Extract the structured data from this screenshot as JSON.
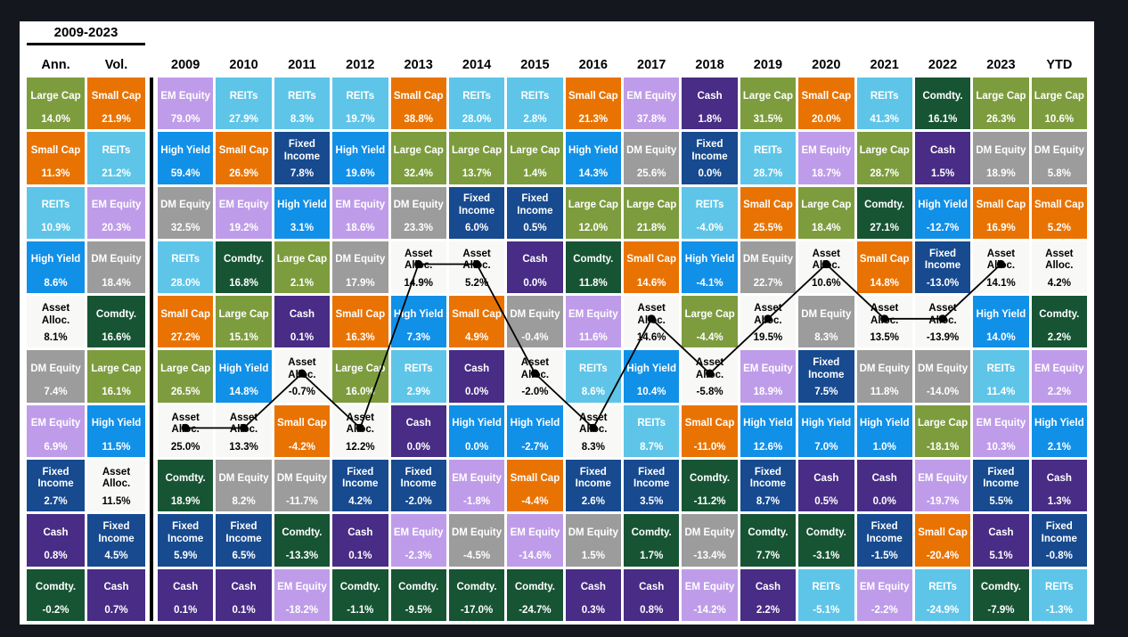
{
  "chart_data": {
    "type": "table",
    "title": "2009-2023",
    "description": "Asset class annual returns quilt chart ranking asset classes by return for each year, with annualized return and volatility summary columns and a traced line following Asset Alloc.",
    "traced_asset": "Asset Alloc.",
    "trace": {
      "color": "#000000",
      "from_column": "2009",
      "to_column": "2023"
    },
    "asset_styles": {
      "Large Cap": {
        "bg": "#7D9C3E",
        "fg": "#FFFFFF"
      },
      "Small Cap": {
        "bg": "#E97302",
        "fg": "#FFFFFF"
      },
      "REITs": {
        "bg": "#5EC5E8",
        "fg": "#FFFFFF"
      },
      "High Yield": {
        "bg": "#1190E8",
        "fg": "#FFFFFF"
      },
      "Asset Alloc.": {
        "bg": "#F8F8F6",
        "fg": "#000000"
      },
      "DM Equity": {
        "bg": "#9C9C9C",
        "fg": "#FFFFFF"
      },
      "EM Equity": {
        "bg": "#BF9CE9",
        "fg": "#FFFFFF"
      },
      "Fixed Income": {
        "bg": "#174A8F",
        "fg": "#FFFFFF"
      },
      "Cash": {
        "bg": "#482C85",
        "fg": "#FFFFFF"
      },
      "Comdty.": {
        "bg": "#175434",
        "fg": "#FFFFFF"
      }
    },
    "columns": [
      {
        "label": "Ann.",
        "group": "summary",
        "cells": [
          [
            "Large Cap",
            "14.0%"
          ],
          [
            "Small Cap",
            "11.3%"
          ],
          [
            "REITs",
            "10.9%"
          ],
          [
            "High Yield",
            "8.6%"
          ],
          [
            "Asset Alloc.",
            "8.1%"
          ],
          [
            "DM Equity",
            "7.4%"
          ],
          [
            "EM Equity",
            "6.9%"
          ],
          [
            "Fixed Income",
            "2.7%"
          ],
          [
            "Cash",
            "0.8%"
          ],
          [
            "Comdty.",
            "-0.2%"
          ]
        ]
      },
      {
        "label": "Vol.",
        "group": "summary",
        "cells": [
          [
            "Small Cap",
            "21.9%"
          ],
          [
            "REITs",
            "21.2%"
          ],
          [
            "EM Equity",
            "20.3%"
          ],
          [
            "DM Equity",
            "18.4%"
          ],
          [
            "Comdty.",
            "16.6%"
          ],
          [
            "Large Cap",
            "16.1%"
          ],
          [
            "High Yield",
            "11.5%"
          ],
          [
            "Asset Alloc.",
            "11.5%"
          ],
          [
            "Fixed Income",
            "4.5%"
          ],
          [
            "Cash",
            "0.7%"
          ]
        ]
      },
      {
        "label": "2009",
        "group": "year",
        "cells": [
          [
            "EM Equity",
            "79.0%"
          ],
          [
            "High Yield",
            "59.4%"
          ],
          [
            "DM Equity",
            "32.5%"
          ],
          [
            "REITs",
            "28.0%"
          ],
          [
            "Small Cap",
            "27.2%"
          ],
          [
            "Large Cap",
            "26.5%"
          ],
          [
            "Asset Alloc.",
            "25.0%"
          ],
          [
            "Comdty.",
            "18.9%"
          ],
          [
            "Fixed Income",
            "5.9%"
          ],
          [
            "Cash",
            "0.1%"
          ]
        ]
      },
      {
        "label": "2010",
        "group": "year",
        "cells": [
          [
            "REITs",
            "27.9%"
          ],
          [
            "Small Cap",
            "26.9%"
          ],
          [
            "EM Equity",
            "19.2%"
          ],
          [
            "Comdty.",
            "16.8%"
          ],
          [
            "Large Cap",
            "15.1%"
          ],
          [
            "High Yield",
            "14.8%"
          ],
          [
            "Asset Alloc.",
            "13.3%"
          ],
          [
            "DM Equity",
            "8.2%"
          ],
          [
            "Fixed Income",
            "6.5%"
          ],
          [
            "Cash",
            "0.1%"
          ]
        ]
      },
      {
        "label": "2011",
        "group": "year",
        "cells": [
          [
            "REITs",
            "8.3%"
          ],
          [
            "Fixed Income",
            "7.8%"
          ],
          [
            "High Yield",
            "3.1%"
          ],
          [
            "Large Cap",
            "2.1%"
          ],
          [
            "Cash",
            "0.1%"
          ],
          [
            "Asset Alloc.",
            "-0.7%"
          ],
          [
            "Small Cap",
            "-4.2%"
          ],
          [
            "DM Equity",
            "-11.7%"
          ],
          [
            "Comdty.",
            "-13.3%"
          ],
          [
            "EM Equity",
            "-18.2%"
          ]
        ]
      },
      {
        "label": "2012",
        "group": "year",
        "cells": [
          [
            "REITs",
            "19.7%"
          ],
          [
            "High Yield",
            "19.6%"
          ],
          [
            "EM Equity",
            "18.6%"
          ],
          [
            "DM Equity",
            "17.9%"
          ],
          [
            "Small Cap",
            "16.3%"
          ],
          [
            "Large Cap",
            "16.0%"
          ],
          [
            "Asset Alloc.",
            "12.2%"
          ],
          [
            "Fixed Income",
            "4.2%"
          ],
          [
            "Cash",
            "0.1%"
          ],
          [
            "Comdty.",
            "-1.1%"
          ]
        ]
      },
      {
        "label": "2013",
        "group": "year",
        "cells": [
          [
            "Small Cap",
            "38.8%"
          ],
          [
            "Large Cap",
            "32.4%"
          ],
          [
            "DM Equity",
            "23.3%"
          ],
          [
            "Asset Alloc.",
            "14.9%"
          ],
          [
            "High Yield",
            "7.3%"
          ],
          [
            "REITs",
            "2.9%"
          ],
          [
            "Cash",
            "0.0%"
          ],
          [
            "Fixed Income",
            "-2.0%"
          ],
          [
            "EM Equity",
            "-2.3%"
          ],
          [
            "Comdty.",
            "-9.5%"
          ]
        ]
      },
      {
        "label": "2014",
        "group": "year",
        "cells": [
          [
            "REITs",
            "28.0%"
          ],
          [
            "Large Cap",
            "13.7%"
          ],
          [
            "Fixed Income",
            "6.0%"
          ],
          [
            "Asset Alloc.",
            "5.2%"
          ],
          [
            "Small Cap",
            "4.9%"
          ],
          [
            "Cash",
            "0.0%"
          ],
          [
            "High Yield",
            "0.0%"
          ],
          [
            "EM Equity",
            "-1.8%"
          ],
          [
            "DM Equity",
            "-4.5%"
          ],
          [
            "Comdty.",
            "-17.0%"
          ]
        ]
      },
      {
        "label": "2015",
        "group": "year",
        "cells": [
          [
            "REITs",
            "2.8%"
          ],
          [
            "Large Cap",
            "1.4%"
          ],
          [
            "Fixed Income",
            "0.5%"
          ],
          [
            "Cash",
            "0.0%"
          ],
          [
            "DM Equity",
            "-0.4%"
          ],
          [
            "Asset Alloc.",
            "-2.0%"
          ],
          [
            "High Yield",
            "-2.7%"
          ],
          [
            "Small Cap",
            "-4.4%"
          ],
          [
            "EM Equity",
            "-14.6%"
          ],
          [
            "Comdty.",
            "-24.7%"
          ]
        ]
      },
      {
        "label": "2016",
        "group": "year",
        "cells": [
          [
            "Small Cap",
            "21.3%"
          ],
          [
            "High Yield",
            "14.3%"
          ],
          [
            "Large Cap",
            "12.0%"
          ],
          [
            "Comdty.",
            "11.8%"
          ],
          [
            "EM Equity",
            "11.6%"
          ],
          [
            "REITs",
            "8.6%"
          ],
          [
            "Asset Alloc.",
            "8.3%"
          ],
          [
            "Fixed Income",
            "2.6%"
          ],
          [
            "DM Equity",
            "1.5%"
          ],
          [
            "Cash",
            "0.3%"
          ]
        ]
      },
      {
        "label": "2017",
        "group": "year",
        "cells": [
          [
            "EM Equity",
            "37.8%"
          ],
          [
            "DM Equity",
            "25.6%"
          ],
          [
            "Large Cap",
            "21.8%"
          ],
          [
            "Small Cap",
            "14.6%"
          ],
          [
            "Asset Alloc.",
            "14.6%"
          ],
          [
            "High Yield",
            "10.4%"
          ],
          [
            "REITs",
            "8.7%"
          ],
          [
            "Fixed Income",
            "3.5%"
          ],
          [
            "Comdty.",
            "1.7%"
          ],
          [
            "Cash",
            "0.8%"
          ]
        ]
      },
      {
        "label": "2018",
        "group": "year",
        "cells": [
          [
            "Cash",
            "1.8%"
          ],
          [
            "Fixed Income",
            "0.0%"
          ],
          [
            "REITs",
            "-4.0%"
          ],
          [
            "High Yield",
            "-4.1%"
          ],
          [
            "Large Cap",
            "-4.4%"
          ],
          [
            "Asset Alloc.",
            "-5.8%"
          ],
          [
            "Small Cap",
            "-11.0%"
          ],
          [
            "Comdty.",
            "-11.2%"
          ],
          [
            "DM Equity",
            "-13.4%"
          ],
          [
            "EM Equity",
            "-14.2%"
          ]
        ]
      },
      {
        "label": "2019",
        "group": "year",
        "cells": [
          [
            "Large Cap",
            "31.5%"
          ],
          [
            "REITs",
            "28.7%"
          ],
          [
            "Small Cap",
            "25.5%"
          ],
          [
            "DM Equity",
            "22.7%"
          ],
          [
            "Asset Alloc.",
            "19.5%"
          ],
          [
            "EM Equity",
            "18.9%"
          ],
          [
            "High Yield",
            "12.6%"
          ],
          [
            "Fixed Income",
            "8.7%"
          ],
          [
            "Comdty.",
            "7.7%"
          ],
          [
            "Cash",
            "2.2%"
          ]
        ]
      },
      {
        "label": "2020",
        "group": "year",
        "cells": [
          [
            "Small Cap",
            "20.0%"
          ],
          [
            "EM Equity",
            "18.7%"
          ],
          [
            "Large Cap",
            "18.4%"
          ],
          [
            "Asset Alloc.",
            "10.6%"
          ],
          [
            "DM Equity",
            "8.3%"
          ],
          [
            "Fixed Income",
            "7.5%"
          ],
          [
            "High Yield",
            "7.0%"
          ],
          [
            "Cash",
            "0.5%"
          ],
          [
            "Comdty.",
            "-3.1%"
          ],
          [
            "REITs",
            "-5.1%"
          ]
        ]
      },
      {
        "label": "2021",
        "group": "year",
        "cells": [
          [
            "REITs",
            "41.3%"
          ],
          [
            "Large Cap",
            "28.7%"
          ],
          [
            "Comdty.",
            "27.1%"
          ],
          [
            "Small Cap",
            "14.8%"
          ],
          [
            "Asset Alloc.",
            "13.5%"
          ],
          [
            "DM Equity",
            "11.8%"
          ],
          [
            "High Yield",
            "1.0%"
          ],
          [
            "Cash",
            "0.0%"
          ],
          [
            "Fixed Income",
            "-1.5%"
          ],
          [
            "EM Equity",
            "-2.2%"
          ]
        ]
      },
      {
        "label": "2022",
        "group": "year",
        "cells": [
          [
            "Comdty.",
            "16.1%"
          ],
          [
            "Cash",
            "1.5%"
          ],
          [
            "High Yield",
            "-12.7%"
          ],
          [
            "Fixed Income",
            "-13.0%"
          ],
          [
            "Asset Alloc.",
            "-13.9%"
          ],
          [
            "DM Equity",
            "-14.0%"
          ],
          [
            "Large Cap",
            "-18.1%"
          ],
          [
            "EM Equity",
            "-19.7%"
          ],
          [
            "Small Cap",
            "-20.4%"
          ],
          [
            "REITs",
            "-24.9%"
          ]
        ]
      },
      {
        "label": "2023",
        "group": "year",
        "cells": [
          [
            "Large Cap",
            "26.3%"
          ],
          [
            "DM Equity",
            "18.9%"
          ],
          [
            "Small Cap",
            "16.9%"
          ],
          [
            "Asset Alloc.",
            "14.1%"
          ],
          [
            "High Yield",
            "14.0%"
          ],
          [
            "REITs",
            "11.4%"
          ],
          [
            "EM Equity",
            "10.3%"
          ],
          [
            "Fixed Income",
            "5.5%"
          ],
          [
            "Cash",
            "5.1%"
          ],
          [
            "Comdty.",
            "-7.9%"
          ]
        ]
      },
      {
        "label": "YTD",
        "group": "ytd",
        "cells": [
          [
            "Large Cap",
            "10.6%"
          ],
          [
            "DM Equity",
            "5.8%"
          ],
          [
            "Small Cap",
            "5.2%"
          ],
          [
            "Asset Alloc.",
            "4.2%"
          ],
          [
            "Comdty.",
            "2.2%"
          ],
          [
            "EM Equity",
            "2.2%"
          ],
          [
            "High Yield",
            "2.1%"
          ],
          [
            "Cash",
            "1.3%"
          ],
          [
            "Fixed Income",
            "-0.8%"
          ],
          [
            "REITs",
            "-1.3%"
          ]
        ]
      }
    ]
  }
}
